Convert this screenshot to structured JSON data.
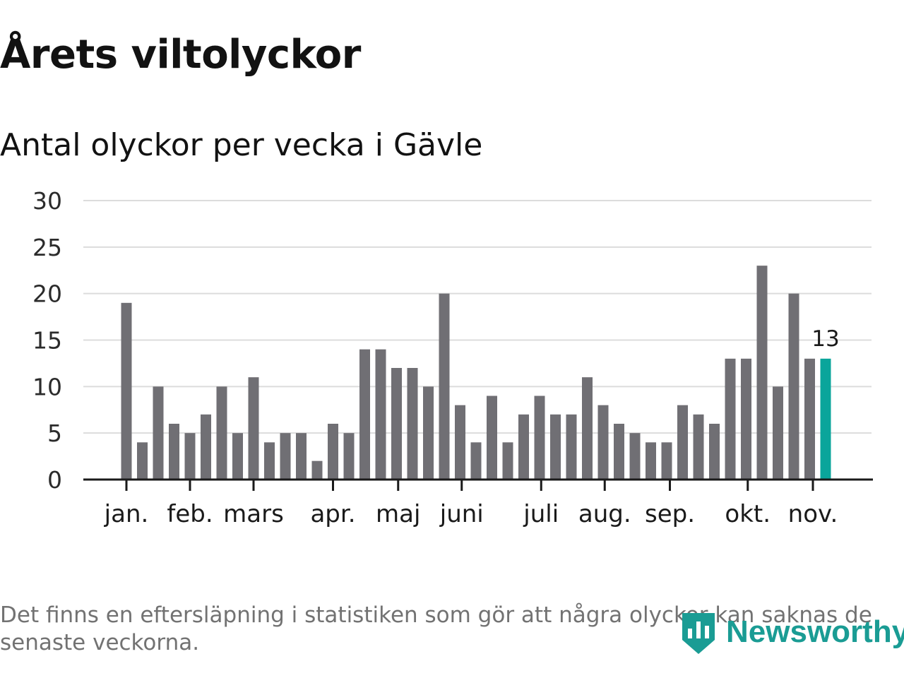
{
  "title": "Årets viltolyckor",
  "subtitle": "Antal olyckor per vecka i Gävle",
  "footnote": "Det finns en eftersläpning i statistiken som gör att några olyckor kan saknas de senaste veckorna.",
  "logo": {
    "text": "Newsworthy",
    "icon": "newsworthy-logo-icon"
  },
  "colors": {
    "bar": "#706f74",
    "highlight": "#0aa59b",
    "grid": "#dcdcdc",
    "axis": "#1a1a1a",
    "text": "#121212",
    "footnote": "#727272",
    "brand": "#1a9c94"
  },
  "chart_data": {
    "type": "bar",
    "title": "Årets viltolyckor",
    "subtitle": "Antal olyckor per vecka i Gävle",
    "xlabel": "",
    "ylabel": "",
    "x_unit": "week",
    "ylim": [
      0,
      30
    ],
    "yticks": [
      "0",
      "5",
      "10",
      "15",
      "20",
      "25",
      "30"
    ],
    "grid": true,
    "legend": "none",
    "values": [
      19,
      4,
      10,
      6,
      5,
      7,
      10,
      5,
      11,
      4,
      5,
      5,
      2,
      6,
      5,
      14,
      14,
      12,
      12,
      10,
      20,
      8,
      4,
      9,
      4,
      7,
      9,
      7,
      7,
      11,
      8,
      6,
      5,
      4,
      4,
      8,
      7,
      6,
      13,
      13,
      23,
      10,
      20,
      13,
      13
    ],
    "highlight_index": 44,
    "highlight_label": "13",
    "month_ticks": [
      {
        "label": "jan.",
        "week": 0.5
      },
      {
        "label": "feb.",
        "week": 4.5
      },
      {
        "label": "mars",
        "week": 8.5
      },
      {
        "label": "apr.",
        "week": 13.5
      },
      {
        "label": "maj",
        "week": 17.6
      },
      {
        "label": "juni",
        "week": 21.6
      },
      {
        "label": "juli",
        "week": 26.6
      },
      {
        "label": "aug.",
        "week": 30.6
      },
      {
        "label": "sep.",
        "week": 34.7
      },
      {
        "label": "okt.",
        "week": 39.6
      },
      {
        "label": "nov.",
        "week": 43.7
      }
    ]
  }
}
